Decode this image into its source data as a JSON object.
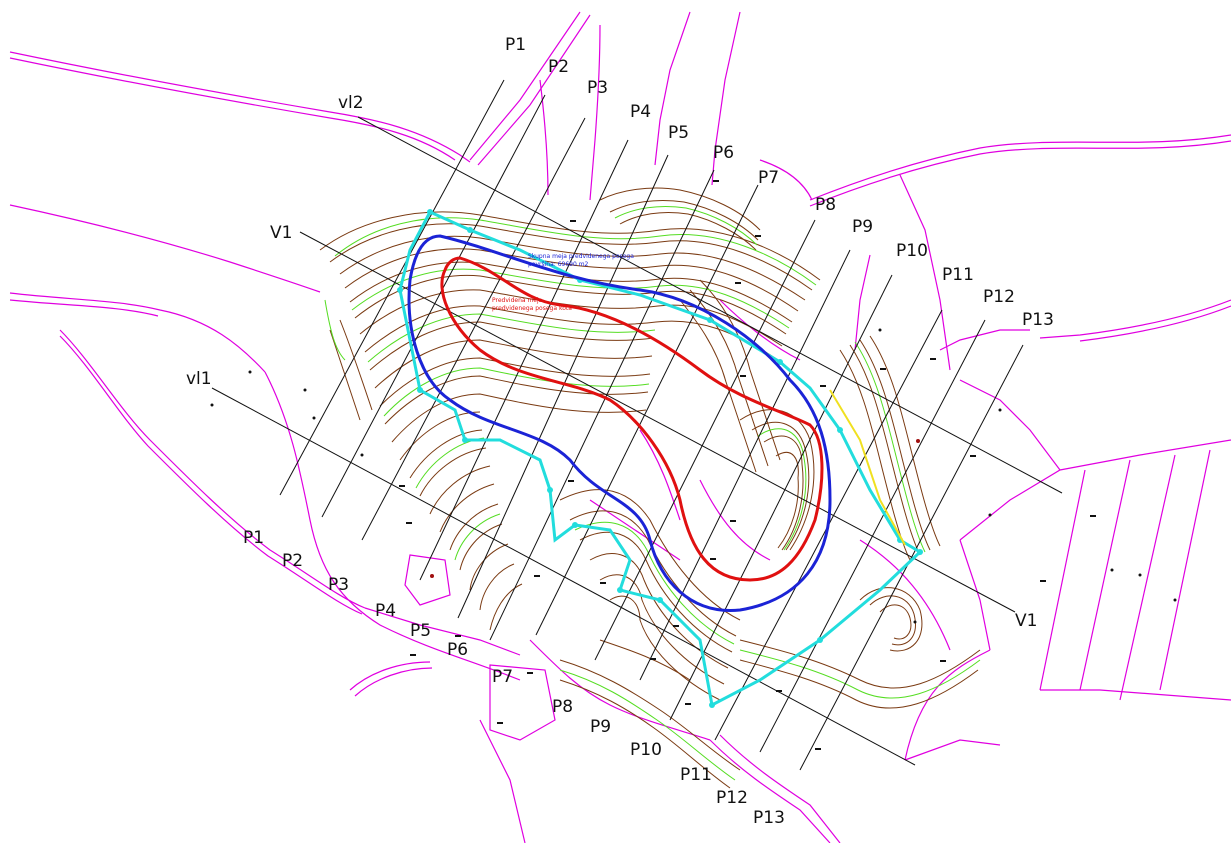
{
  "profiles": [
    {
      "label": "P1"
    },
    {
      "label": "P2"
    },
    {
      "label": "P3"
    },
    {
      "label": "P4"
    },
    {
      "label": "P5"
    },
    {
      "label": "P6"
    },
    {
      "label": "P7"
    },
    {
      "label": "P8"
    },
    {
      "label": "P9"
    },
    {
      "label": "P10"
    },
    {
      "label": "P11"
    },
    {
      "label": "P12"
    },
    {
      "label": "P13"
    }
  ],
  "longitudinal": {
    "v1": "V1",
    "vl1": "vl1",
    "vl2": "vl2"
  },
  "annotations": {
    "blue_1": "Skupna meja predvidenega posega",
    "blue_2": "površina: 69690 m2",
    "red_1": "Predvidena meja",
    "red_2": "predvidenega posega kota"
  },
  "colors": {
    "parcels": "#e000e0",
    "contour_brown": "#7a3a12",
    "contour_green": "#55dd22",
    "boundary_blue": "#1b23d6",
    "boundary_red": "#e01010",
    "survey_cyan": "#22dddd",
    "section_lines": "#111111"
  }
}
